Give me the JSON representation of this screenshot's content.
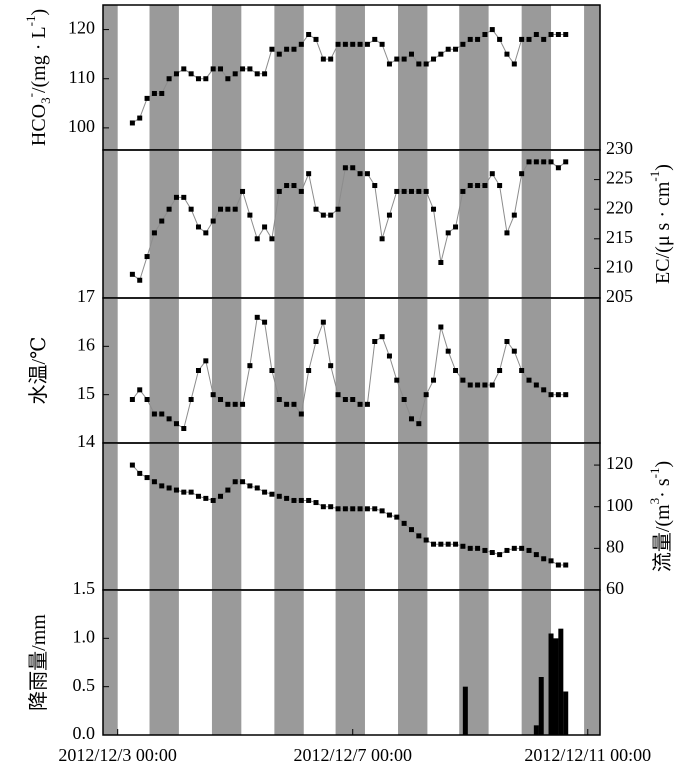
{
  "chart_data": [
    {
      "type": "line",
      "ylabel": [
        "HCO",
        "3",
        "-",
        "/(mg · L",
        "-1",
        ")"
      ],
      "y_axis_side": "left",
      "ylim": [
        95.5,
        125
      ],
      "yticks": [
        100,
        110,
        120
      ],
      "xlim": [
        "2012/12/2 18:00",
        "2012/12/11 05:00"
      ],
      "x": [
        "2012/12/3 06:00",
        "2012/12/3 09:00",
        "2012/12/3 12:00",
        "2012/12/3 15:00",
        "2012/12/3 18:00",
        "2012/12/3 21:00",
        "2012/12/4 00:00",
        "2012/12/4 03:00",
        "2012/12/4 06:00",
        "2012/12/4 09:00",
        "2012/12/4 12:00",
        "2012/12/4 15:00",
        "2012/12/4 18:00",
        "2012/12/4 21:00",
        "2012/12/5 00:00",
        "2012/12/5 03:00",
        "2012/12/5 06:00",
        "2012/12/5 09:00",
        "2012/12/5 12:00",
        "2012/12/5 15:00",
        "2012/12/5 18:00",
        "2012/12/5 21:00",
        "2012/12/6 00:00",
        "2012/12/6 03:00",
        "2012/12/6 06:00",
        "2012/12/6 09:00",
        "2012/12/6 12:00",
        "2012/12/6 15:00",
        "2012/12/6 18:00",
        "2012/12/6 21:00",
        "2012/12/7 00:00",
        "2012/12/7 03:00",
        "2012/12/7 06:00",
        "2012/12/7 09:00",
        "2012/12/7 12:00",
        "2012/12/7 15:00",
        "2012/12/7 18:00",
        "2012/12/7 21:00",
        "2012/12/8 00:00",
        "2012/12/8 03:00",
        "2012/12/8 06:00",
        "2012/12/8 09:00",
        "2012/12/8 12:00",
        "2012/12/8 15:00",
        "2012/12/8 18:00",
        "2012/12/8 21:00",
        "2012/12/9 00:00",
        "2012/12/9 03:00",
        "2012/12/9 06:00",
        "2012/12/9 09:00",
        "2012/12/9 12:00",
        "2012/12/9 15:00",
        "2012/12/9 18:00",
        "2012/12/9 21:00",
        "2012/12/10 00:00",
        "2012/12/10 03:00",
        "2012/12/10 06:00",
        "2012/12/10 09:00",
        "2012/12/10 12:00",
        "2012/12/10 15:00"
      ],
      "values": [
        101,
        102,
        106,
        107,
        107,
        110,
        111,
        112,
        111,
        110,
        110,
        112,
        112,
        110,
        111,
        112,
        112,
        111,
        111,
        116,
        115,
        116,
        116,
        117,
        119,
        118,
        114,
        114,
        117,
        117,
        117,
        117,
        117,
        118,
        117,
        113,
        114,
        114,
        115,
        113,
        113,
        114,
        115,
        116,
        116,
        117,
        118,
        118,
        119,
        120,
        118,
        115,
        113,
        118,
        118,
        119,
        118,
        119,
        119,
        119
      ],
      "line_color": "#8c8c8c",
      "marker_color": "#000000",
      "band_color": "#9a9a9a",
      "bands": [
        [
          "2012/12/2 18:00",
          "2012/12/3 00:00"
        ],
        [
          "2012/12/3 13:00",
          "2012/12/4 01:00"
        ],
        [
          "2012/12/4 14:30",
          "2012/12/5 02:30"
        ],
        [
          "2012/12/5 16:00",
          "2012/12/6 04:00"
        ],
        [
          "2012/12/6 17:00",
          "2012/12/7 05:00"
        ],
        [
          "2012/12/7 18:30",
          "2012/12/8 06:30"
        ],
        [
          "2012/12/8 19:30",
          "2012/12/9 07:30"
        ],
        [
          "2012/12/9 21:00",
          "2012/12/10 09:00"
        ],
        [
          "2012/12/10 22:30",
          "2012/12/11 05:00"
        ]
      ]
    },
    {
      "type": "line",
      "ylabel": [
        "EC/(μ s · cm",
        "-1",
        ")"
      ],
      "y_axis_side": "right",
      "ylim": [
        205,
        230
      ],
      "yticks": [
        205,
        210,
        215,
        220,
        225,
        230
      ],
      "xlim": [
        "2012/12/2 18:00",
        "2012/12/11 05:00"
      ],
      "x": [
        "2012/12/3 06:00",
        "2012/12/3 09:00",
        "2012/12/3 12:00",
        "2012/12/3 15:00",
        "2012/12/3 18:00",
        "2012/12/3 21:00",
        "2012/12/4 00:00",
        "2012/12/4 03:00",
        "2012/12/4 06:00",
        "2012/12/4 09:00",
        "2012/12/4 12:00",
        "2012/12/4 15:00",
        "2012/12/4 18:00",
        "2012/12/4 21:00",
        "2012/12/5 00:00",
        "2012/12/5 03:00",
        "2012/12/5 06:00",
        "2012/12/5 09:00",
        "2012/12/5 12:00",
        "2012/12/5 15:00",
        "2012/12/5 18:00",
        "2012/12/5 21:00",
        "2012/12/6 00:00",
        "2012/12/6 03:00",
        "2012/12/6 06:00",
        "2012/12/6 09:00",
        "2012/12/6 12:00",
        "2012/12/6 15:00",
        "2012/12/6 18:00",
        "2012/12/6 21:00",
        "2012/12/7 00:00",
        "2012/12/7 03:00",
        "2012/12/7 06:00",
        "2012/12/7 09:00",
        "2012/12/7 12:00",
        "2012/12/7 15:00",
        "2012/12/7 18:00",
        "2012/12/7 21:00",
        "2012/12/8 00:00",
        "2012/12/8 03:00",
        "2012/12/8 06:00",
        "2012/12/8 09:00",
        "2012/12/8 12:00",
        "2012/12/8 15:00",
        "2012/12/8 18:00",
        "2012/12/8 21:00",
        "2012/12/9 00:00",
        "2012/12/9 03:00",
        "2012/12/9 06:00",
        "2012/12/9 09:00",
        "2012/12/9 12:00",
        "2012/12/9 15:00",
        "2012/12/9 18:00",
        "2012/12/9 21:00",
        "2012/12/10 00:00",
        "2012/12/10 03:00",
        "2012/12/10 06:00",
        "2012/12/10 09:00",
        "2012/12/10 12:00",
        "2012/12/10 15:00"
      ],
      "values": [
        209,
        208,
        212,
        216,
        218,
        220,
        222,
        222,
        220,
        217,
        216,
        218,
        220,
        220,
        220,
        223,
        219,
        215,
        217,
        215,
        223,
        224,
        224,
        223,
        226,
        220,
        219,
        219,
        220,
        227,
        227,
        226,
        226,
        224,
        215,
        219,
        223,
        223,
        223,
        223,
        223,
        220,
        211,
        216,
        217,
        223,
        224,
        224,
        224,
        226,
        224,
        216,
        219,
        226,
        228,
        228,
        228,
        228,
        227,
        228
      ],
      "line_color": "#8c8c8c",
      "marker_color": "#000000",
      "band_color": "#9a9a9a",
      "bands": [
        [
          "2012/12/2 18:00",
          "2012/12/3 00:00"
        ],
        [
          "2012/12/3 13:00",
          "2012/12/4 01:00"
        ],
        [
          "2012/12/4 14:30",
          "2012/12/5 02:30"
        ],
        [
          "2012/12/5 16:00",
          "2012/12/6 04:00"
        ],
        [
          "2012/12/6 17:00",
          "2012/12/7 05:00"
        ],
        [
          "2012/12/7 18:30",
          "2012/12/8 06:30"
        ],
        [
          "2012/12/8 19:30",
          "2012/12/9 07:30"
        ],
        [
          "2012/12/9 21:00",
          "2012/12/10 09:00"
        ],
        [
          "2012/12/10 22:30",
          "2012/12/11 05:00"
        ]
      ]
    },
    {
      "type": "line",
      "ylabel": [
        "水温/℃"
      ],
      "y_axis_side": "left",
      "ylim": [
        14,
        17
      ],
      "yticks": [
        14,
        15,
        16,
        17
      ],
      "xlim": [
        "2012/12/2 18:00",
        "2012/12/11 05:00"
      ],
      "x": [
        "2012/12/3 06:00",
        "2012/12/3 09:00",
        "2012/12/3 12:00",
        "2012/12/3 15:00",
        "2012/12/3 18:00",
        "2012/12/3 21:00",
        "2012/12/4 00:00",
        "2012/12/4 03:00",
        "2012/12/4 06:00",
        "2012/12/4 09:00",
        "2012/12/4 12:00",
        "2012/12/4 15:00",
        "2012/12/4 18:00",
        "2012/12/4 21:00",
        "2012/12/5 00:00",
        "2012/12/5 03:00",
        "2012/12/5 06:00",
        "2012/12/5 09:00",
        "2012/12/5 12:00",
        "2012/12/5 15:00",
        "2012/12/5 18:00",
        "2012/12/5 21:00",
        "2012/12/6 00:00",
        "2012/12/6 03:00",
        "2012/12/6 06:00",
        "2012/12/6 09:00",
        "2012/12/6 12:00",
        "2012/12/6 15:00",
        "2012/12/6 18:00",
        "2012/12/6 21:00",
        "2012/12/7 00:00",
        "2012/12/7 03:00",
        "2012/12/7 06:00",
        "2012/12/7 09:00",
        "2012/12/7 12:00",
        "2012/12/7 15:00",
        "2012/12/7 18:00",
        "2012/12/7 21:00",
        "2012/12/8 00:00",
        "2012/12/8 03:00",
        "2012/12/8 06:00",
        "2012/12/8 09:00",
        "2012/12/8 12:00",
        "2012/12/8 15:00",
        "2012/12/8 18:00",
        "2012/12/8 21:00",
        "2012/12/9 00:00",
        "2012/12/9 03:00",
        "2012/12/9 06:00",
        "2012/12/9 09:00",
        "2012/12/9 12:00",
        "2012/12/9 15:00",
        "2012/12/9 18:00",
        "2012/12/9 21:00",
        "2012/12/10 00:00",
        "2012/12/10 03:00",
        "2012/12/10 06:00",
        "2012/12/10 09:00",
        "2012/12/10 12:00",
        "2012/12/10 15:00"
      ],
      "values": [
        14.9,
        15.1,
        14.9,
        14.6,
        14.6,
        14.5,
        14.4,
        14.3,
        14.9,
        15.5,
        15.7,
        15.0,
        14.9,
        14.8,
        14.8,
        14.8,
        15.6,
        16.6,
        16.5,
        15.5,
        14.9,
        14.8,
        14.8,
        14.6,
        15.5,
        16.1,
        16.5,
        15.6,
        15.0,
        14.9,
        14.9,
        14.8,
        14.8,
        16.1,
        16.2,
        15.8,
        15.3,
        14.9,
        14.5,
        14.4,
        15.0,
        15.3,
        16.4,
        15.9,
        15.5,
        15.3,
        15.2,
        15.2,
        15.2,
        15.2,
        15.5,
        16.1,
        15.9,
        15.5,
        15.3,
        15.2,
        15.1,
        15.0,
        15.0,
        15.0
      ],
      "line_color": "#8c8c8c",
      "marker_color": "#000000",
      "band_color": "#9a9a9a",
      "bands": [
        [
          "2012/12/2 18:00",
          "2012/12/3 00:00"
        ],
        [
          "2012/12/3 13:00",
          "2012/12/4 01:00"
        ],
        [
          "2012/12/4 14:30",
          "2012/12/5 02:30"
        ],
        [
          "2012/12/5 16:00",
          "2012/12/6 04:00"
        ],
        [
          "2012/12/6 17:00",
          "2012/12/7 05:00"
        ],
        [
          "2012/12/7 18:30",
          "2012/12/8 06:30"
        ],
        [
          "2012/12/8 19:30",
          "2012/12/9 07:30"
        ],
        [
          "2012/12/9 21:00",
          "2012/12/10 09:00"
        ],
        [
          "2012/12/10 22:30",
          "2012/12/11 05:00"
        ]
      ]
    },
    {
      "type": "line",
      "ylabel": [
        "流量/(m",
        "3",
        "· s",
        "-1",
        ")"
      ],
      "y_axis_side": "right",
      "ylim": [
        60,
        130.6
      ],
      "yticks": [
        60,
        80,
        100,
        120
      ],
      "xlim": [
        "2012/12/2 18:00",
        "2012/12/11 05:00"
      ],
      "x": [
        "2012/12/3 06:00",
        "2012/12/3 09:00",
        "2012/12/3 12:00",
        "2012/12/3 15:00",
        "2012/12/3 18:00",
        "2012/12/3 21:00",
        "2012/12/4 00:00",
        "2012/12/4 03:00",
        "2012/12/4 06:00",
        "2012/12/4 09:00",
        "2012/12/4 12:00",
        "2012/12/4 15:00",
        "2012/12/4 18:00",
        "2012/12/4 21:00",
        "2012/12/5 00:00",
        "2012/12/5 03:00",
        "2012/12/5 06:00",
        "2012/12/5 09:00",
        "2012/12/5 12:00",
        "2012/12/5 15:00",
        "2012/12/5 18:00",
        "2012/12/5 21:00",
        "2012/12/6 00:00",
        "2012/12/6 03:00",
        "2012/12/6 06:00",
        "2012/12/6 09:00",
        "2012/12/6 12:00",
        "2012/12/6 15:00",
        "2012/12/6 18:00",
        "2012/12/6 21:00",
        "2012/12/7 00:00",
        "2012/12/7 03:00",
        "2012/12/7 06:00",
        "2012/12/7 09:00",
        "2012/12/7 12:00",
        "2012/12/7 15:00",
        "2012/12/7 18:00",
        "2012/12/7 21:00",
        "2012/12/8 00:00",
        "2012/12/8 03:00",
        "2012/12/8 06:00",
        "2012/12/8 09:00",
        "2012/12/8 12:00",
        "2012/12/8 15:00",
        "2012/12/8 18:00",
        "2012/12/8 21:00",
        "2012/12/9 00:00",
        "2012/12/9 03:00",
        "2012/12/9 06:00",
        "2012/12/9 09:00",
        "2012/12/9 12:00",
        "2012/12/9 15:00",
        "2012/12/9 18:00",
        "2012/12/9 21:00",
        "2012/12/10 00:00",
        "2012/12/10 03:00",
        "2012/12/10 06:00",
        "2012/12/10 09:00",
        "2012/12/10 12:00",
        "2012/12/10 15:00"
      ],
      "values": [
        120,
        116,
        114,
        112,
        110,
        109,
        108,
        107,
        107,
        105,
        104,
        103,
        105,
        108,
        112,
        112,
        110,
        109,
        107,
        106,
        105,
        104,
        103,
        103,
        103,
        102,
        100,
        100,
        99,
        99,
        99,
        99,
        99,
        99,
        98,
        96,
        95,
        92,
        89,
        86,
        84,
        82,
        82,
        82,
        82,
        81,
        80,
        80,
        79,
        78,
        77,
        79,
        80,
        80,
        79,
        77,
        75,
        74,
        72,
        72
      ],
      "line_color": "#8c8c8c",
      "marker_color": "#000000",
      "band_color": "#9a9a9a",
      "bands": [
        [
          "2012/12/2 18:00",
          "2012/12/3 00:00"
        ],
        [
          "2012/12/3 13:00",
          "2012/12/4 01:00"
        ],
        [
          "2012/12/4 14:30",
          "2012/12/5 02:30"
        ],
        [
          "2012/12/5 16:00",
          "2012/12/6 04:00"
        ],
        [
          "2012/12/6 17:00",
          "2012/12/7 05:00"
        ],
        [
          "2012/12/7 18:30",
          "2012/12/8 06:30"
        ],
        [
          "2012/12/8 19:30",
          "2012/12/9 07:30"
        ],
        [
          "2012/12/9 21:00",
          "2012/12/10 09:00"
        ],
        [
          "2012/12/10 22:30",
          "2012/12/11 05:00"
        ]
      ]
    },
    {
      "type": "bar",
      "ylabel": [
        "降雨量/mm"
      ],
      "y_axis_side": "left",
      "ylim": [
        0,
        1.5
      ],
      "yticks": [
        {
          "value": 0,
          "label": "0.0"
        },
        0.5,
        {
          "value": 1,
          "label": "1.0"
        },
        1.5
      ],
      "xlim": [
        "2012/12/2 18:00",
        "2012/12/11 05:00"
      ],
      "xticks": [
        "2012/12/3 00:00",
        "2012/12/7 00:00",
        "2012/12/11 00:00"
      ],
      "x": [
        "2012/12/8 22:00",
        "2012/12/10 03:00",
        "2012/12/10 05:00",
        "2012/12/10 09:00",
        "2012/12/10 11:00",
        "2012/12/10 13:00",
        "2012/12/10 15:00"
      ],
      "values": [
        0.5,
        0.1,
        0.6,
        1.05,
        1.0,
        1.1,
        0.45
      ],
      "color": "#000000",
      "band_color": "#9a9a9a",
      "bands": [
        [
          "2012/12/2 18:00",
          "2012/12/3 00:00"
        ],
        [
          "2012/12/3 13:00",
          "2012/12/4 01:00"
        ],
        [
          "2012/12/4 14:30",
          "2012/12/5 02:30"
        ],
        [
          "2012/12/5 16:00",
          "2012/12/6 04:00"
        ],
        [
          "2012/12/6 17:00",
          "2012/12/7 05:00"
        ],
        [
          "2012/12/7 18:30",
          "2012/12/8 06:30"
        ],
        [
          "2012/12/8 19:30",
          "2012/12/9 07:30"
        ],
        [
          "2012/12/9 21:00",
          "2012/12/10 09:00"
        ],
        [
          "2012/12/10 22:30",
          "2012/12/11 05:00"
        ]
      ]
    }
  ]
}
